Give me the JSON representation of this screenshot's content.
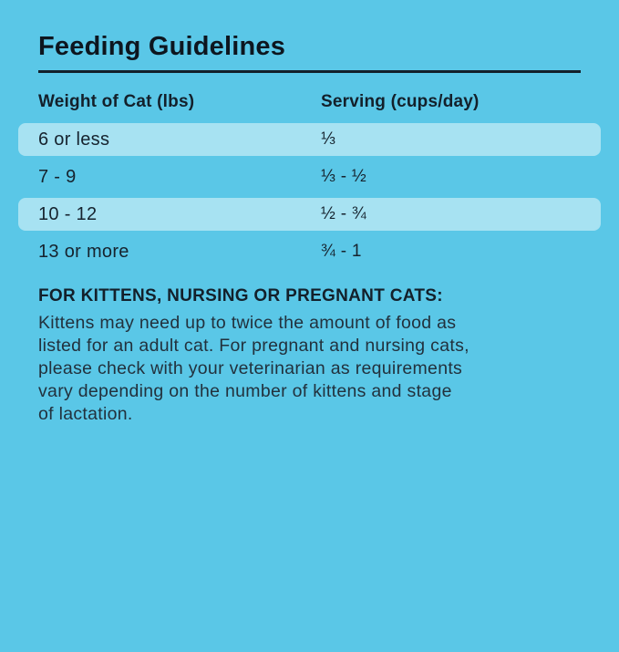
{
  "colors": {
    "background": "#5ac7e7",
    "row_highlight": "#a7e2f2",
    "text_dark": "#13202b"
  },
  "title": "Feeding Guidelines",
  "table": {
    "columns": {
      "weight": "Weight of Cat (lbs)",
      "serving": "Serving (cups/day)"
    },
    "rows": [
      {
        "weight": "6 or less",
        "serving": "⅓",
        "highlighted": true
      },
      {
        "weight": "7 - 9",
        "serving": "⅓ - ½",
        "highlighted": false
      },
      {
        "weight": "10 - 12",
        "serving": "½ - ¾",
        "highlighted": true
      },
      {
        "weight": "13 or more",
        "serving": "¾ - 1",
        "highlighted": false
      }
    ]
  },
  "note": {
    "heading": "FOR KITTENS, NURSING OR PREGNANT CATS:",
    "lines": [
      "Kittens may need up to twice the amount of food as",
      "listed for an adult cat. For pregnant and nursing cats,",
      "please check with your veterinarian as requirements",
      "vary depending on the number of kittens and stage",
      "of lactation."
    ]
  }
}
